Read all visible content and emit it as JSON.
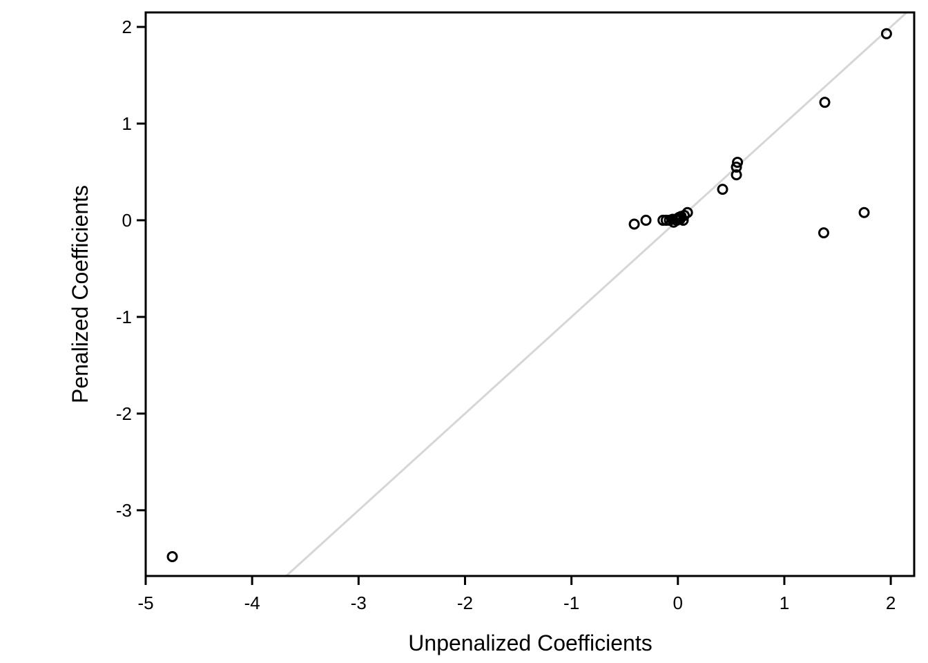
{
  "chart_data": {
    "type": "scatter",
    "title": "",
    "xlabel": "Unpenalized Coefficients",
    "ylabel": "Penalized Coefficients",
    "xlim": [
      -5.0,
      2.22
    ],
    "ylim": [
      -3.68,
      2.15
    ],
    "xticks": [
      -5,
      -4,
      -3,
      -2,
      -1,
      0,
      1,
      2
    ],
    "yticks": [
      -3,
      -2,
      -1,
      0,
      1,
      2
    ],
    "grid": false,
    "reference_line": {
      "type": "identity",
      "slope": 1,
      "intercept": 0,
      "color": "#d6d6d6"
    },
    "marker": {
      "shape": "open-circle",
      "color": "#000000"
    },
    "points": [
      {
        "x": -4.75,
        "y": -3.48
      },
      {
        "x": -0.41,
        "y": -0.04
      },
      {
        "x": -0.3,
        "y": 0.0
      },
      {
        "x": -0.14,
        "y": 0.0
      },
      {
        "x": -0.11,
        "y": 0.0
      },
      {
        "x": -0.08,
        "y": 0.0
      },
      {
        "x": -0.05,
        "y": 0.01
      },
      {
        "x": -0.04,
        "y": -0.02
      },
      {
        "x": -0.02,
        "y": 0.01
      },
      {
        "x": -0.01,
        "y": 0.0
      },
      {
        "x": 0.0,
        "y": 0.02
      },
      {
        "x": 0.01,
        "y": 0.03
      },
      {
        "x": 0.02,
        "y": 0.01
      },
      {
        "x": 0.03,
        "y": 0.04
      },
      {
        "x": 0.05,
        "y": 0.0
      },
      {
        "x": 0.06,
        "y": 0.05
      },
      {
        "x": 0.09,
        "y": 0.08
      },
      {
        "x": 0.42,
        "y": 0.32
      },
      {
        "x": 0.55,
        "y": 0.47
      },
      {
        "x": 0.55,
        "y": 0.55
      },
      {
        "x": 0.56,
        "y": 0.6
      },
      {
        "x": 1.37,
        "y": -0.13
      },
      {
        "x": 1.38,
        "y": 1.22
      },
      {
        "x": 1.75,
        "y": 0.08
      },
      {
        "x": 1.96,
        "y": 1.93
      }
    ]
  }
}
